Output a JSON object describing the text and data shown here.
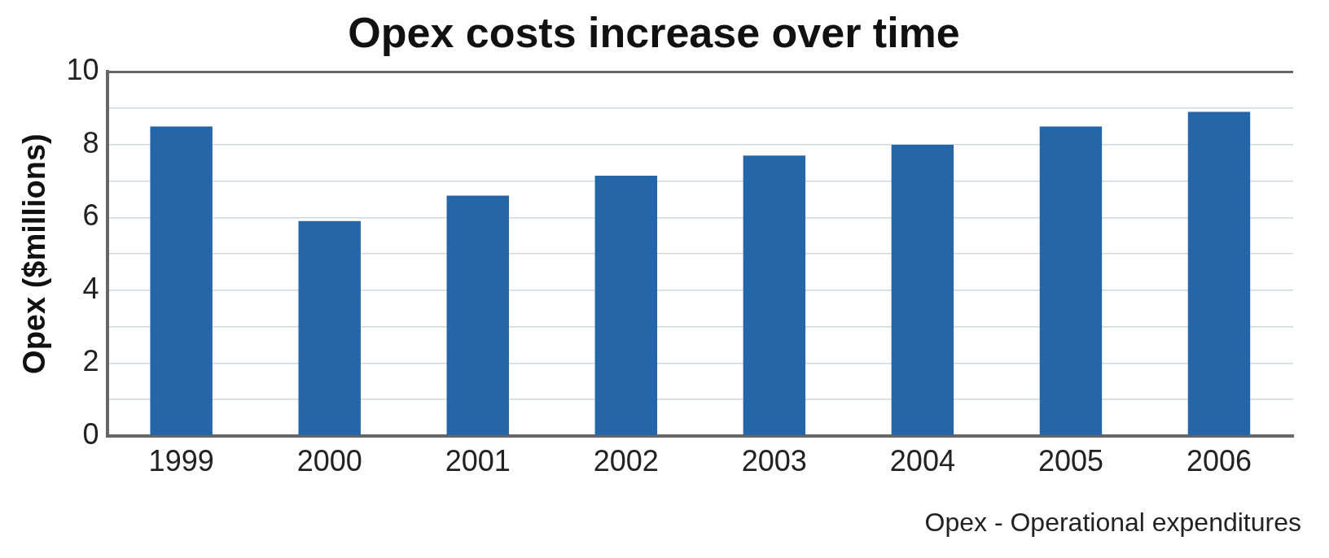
{
  "chart_data": {
    "type": "bar",
    "title": "Opex costs increase over time",
    "ylabel": "Opex ($millions)",
    "categories": [
      "1999",
      "2000",
      "2001",
      "2002",
      "2003",
      "2004",
      "2005",
      "2006"
    ],
    "values": [
      8.5,
      5.9,
      6.6,
      7.15,
      7.7,
      8.0,
      8.5,
      8.9
    ],
    "color": "#2566a8",
    "ylim": [
      0,
      10
    ],
    "yticks": [
      0,
      {
        "value": 1,
        "label": null
      },
      2,
      {
        "value": 3,
        "label": null
      },
      4,
      {
        "value": 5,
        "label": null
      },
      6,
      {
        "value": 7,
        "label": null
      },
      8,
      {
        "value": 9,
        "label": null
      },
      10
    ],
    "grid": "y",
    "annotations": [
      "Opex - Operational expenditures"
    ]
  }
}
